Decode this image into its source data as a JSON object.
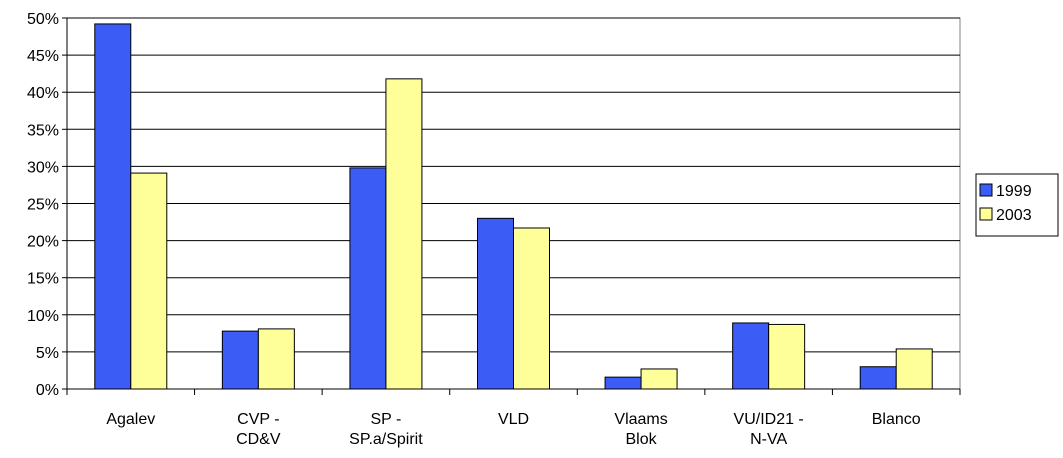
{
  "chart_data": {
    "type": "bar",
    "categories": [
      "Agalev",
      "CVP -\nCD&V",
      "SP -\nSP.a/Spirit",
      "VLD",
      "Vlaams\nBlok",
      "VU/ID21 -\nN-VA",
      "Blanco"
    ],
    "series": [
      {
        "name": "1999",
        "color": "#3b5cf5",
        "values": [
          49.2,
          7.8,
          29.8,
          23.0,
          1.6,
          8.9,
          3.0
        ]
      },
      {
        "name": "2003",
        "color": "#ffff99",
        "values": [
          29.1,
          8.1,
          41.8,
          21.7,
          2.7,
          8.7,
          5.4
        ]
      }
    ],
    "ylim": [
      0,
      50
    ],
    "yticks": [
      {
        "value": 0,
        "label": "0%"
      },
      {
        "value": 5,
        "label": "5%"
      },
      {
        "value": 10,
        "label": "10%"
      },
      {
        "value": 15,
        "label": "15%"
      },
      {
        "value": 20,
        "label": "20%"
      },
      {
        "value": 25,
        "label": "25%"
      },
      {
        "value": 30,
        "label": "30%"
      },
      {
        "value": 35,
        "label": "35%"
      },
      {
        "value": 40,
        "label": "40%"
      },
      {
        "value": 45,
        "label": "45%"
      },
      {
        "value": 50,
        "label": "50%"
      }
    ],
    "grid": true,
    "legend": "right"
  }
}
